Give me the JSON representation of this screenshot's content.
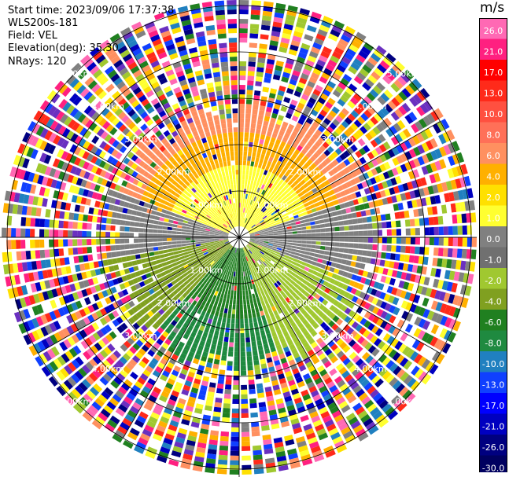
{
  "info": {
    "start_time": "Start time: 2023/09/06 17:37:38",
    "site": "WLS200s-181",
    "field": "Field: VEL",
    "elevation": "Elevation(deg): 35.30",
    "nrays": "NRays: 120"
  },
  "colorbar": {
    "unit": "m/s",
    "labels": [
      "26.0",
      "21.0",
      "17.0",
      "13.0",
      "10.0",
      "8.0",
      "6.0",
      "4.0",
      "2.0",
      "1.0",
      "0.0",
      "-1.0",
      "-2.0",
      "-4.0",
      "-6.0",
      "-8.0",
      "-10.0",
      "-13.0",
      "-17.0",
      "-21.0",
      "-26.0",
      "-30.0"
    ],
    "colors": [
      "#ff69b4",
      "#ff2080",
      "#ff0000",
      "#ff2a1a",
      "#ff5040",
      "#ff7058",
      "#ff9060",
      "#ffb000",
      "#ffe000",
      "#ffff30",
      "#808080",
      "#707070",
      "#a0c830",
      "#80a020",
      "#208020",
      "#1f8a40",
      "#2080c0",
      "#1040ff",
      "#0000ff",
      "#0000c0",
      "#000080",
      "#000060"
    ]
  },
  "rings": {
    "labels": [
      "1.00km",
      "2.00km",
      "3.00km",
      "4.00km",
      "5.00km"
    ]
  }
}
